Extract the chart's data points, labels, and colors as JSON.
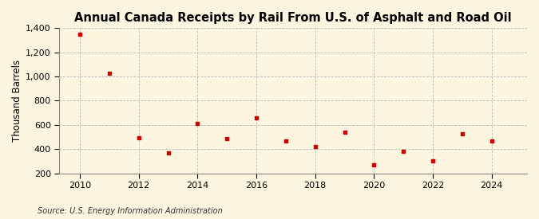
{
  "title": "Annual Canada Receipts by Rail From U.S. of Asphalt and Road Oil",
  "ylabel": "Thousand Barrels",
  "source": "Source: U.S. Energy Information Administration",
  "background_color": "#fdf5e0",
  "plot_bg_color": "#fdf5e0",
  "marker_color": "#cc0000",
  "years": [
    2010,
    2011,
    2012,
    2013,
    2014,
    2015,
    2016,
    2017,
    2018,
    2019,
    2020,
    2021,
    2022,
    2023,
    2024
  ],
  "values": [
    1350,
    1025,
    495,
    370,
    610,
    490,
    660,
    470,
    420,
    540,
    270,
    380,
    305,
    525,
    465
  ],
  "ylim": [
    200,
    1400
  ],
  "yticks": [
    200,
    400,
    600,
    800,
    1000,
    1200,
    1400
  ],
  "xlim": [
    2009.3,
    2025.2
  ],
  "xticks": [
    2010,
    2012,
    2014,
    2016,
    2018,
    2020,
    2022,
    2024
  ],
  "grid_color": "#bbbbbb",
  "title_fontsize": 10.5,
  "label_fontsize": 8.5,
  "tick_fontsize": 8,
  "source_fontsize": 7
}
